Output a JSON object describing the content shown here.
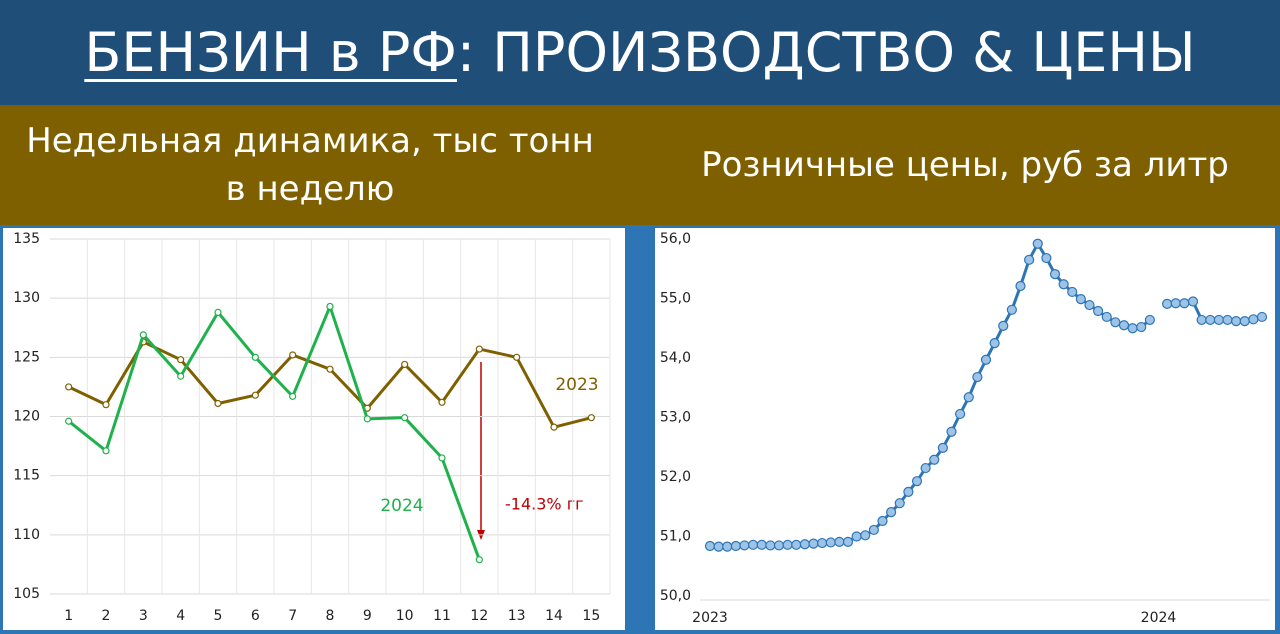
{
  "header": {
    "title_main": "БЕНЗИН в РФ",
    "title_rest": ": ПРОИЗВОДСТВО & ЦЕНЫ",
    "subtitle_left": "Недельная динамика, тыс тонн в неделю",
    "subtitle_right": "Розничные цены, руб за литр"
  },
  "chart_data": [
    {
      "type": "line",
      "categories": [
        "1",
        "2",
        "3",
        "4",
        "5",
        "6",
        "7",
        "8",
        "9",
        "10",
        "11",
        "12",
        "13",
        "14",
        "15"
      ],
      "series": [
        {
          "name": "2023",
          "color": "#7f6000",
          "values": [
            122.5,
            121.0,
            126.3,
            124.8,
            121.1,
            121.8,
            125.2,
            124.0,
            120.7,
            124.4,
            121.2,
            125.7,
            125.0,
            119.1,
            119.9
          ]
        },
        {
          "name": "2024",
          "color": "#1fb14c",
          "values": [
            119.6,
            117.1,
            126.9,
            123.4,
            128.8,
            125.0,
            121.7,
            129.3,
            119.8,
            119.9,
            116.5,
            107.9,
            null,
            null,
            null
          ]
        }
      ],
      "ylim": [
        105,
        135
      ],
      "yticks": [
        105,
        110,
        115,
        120,
        125,
        130,
        135
      ],
      "grid": true,
      "annotation": "-14.3% гг"
    },
    {
      "type": "line",
      "categories": [
        "2023",
        null,
        null,
        null,
        null,
        null,
        null,
        null,
        null,
        null,
        null,
        null,
        null,
        null,
        null,
        null,
        null,
        null,
        null,
        null,
        null,
        null,
        null,
        null,
        null,
        null,
        null,
        null,
        null,
        null,
        null,
        null,
        null,
        null,
        null,
        null,
        null,
        null,
        null,
        null,
        null,
        null,
        null,
        null,
        null,
        null,
        null,
        null,
        null,
        null,
        null,
        null,
        "2024",
        null,
        null,
        null,
        null,
        null,
        null,
        null,
        null,
        null,
        null,
        null,
        null
      ],
      "series": [
        {
          "color": "#2e75b6",
          "values": [
            50.84,
            50.83,
            50.83,
            50.84,
            50.85,
            50.86,
            50.86,
            50.85,
            50.85,
            50.86,
            50.86,
            50.87,
            50.88,
            50.89,
            50.9,
            50.91,
            50.91,
            51.0,
            51.02,
            51.11,
            51.26,
            51.41,
            51.56,
            51.75,
            51.93,
            52.15,
            52.29,
            52.49,
            52.76,
            53.06,
            53.34,
            53.68,
            53.97,
            54.25,
            54.54,
            54.81,
            55.21,
            55.65,
            55.92,
            55.68,
            55.41,
            55.24,
            55.11,
            54.99,
            54.89,
            54.79,
            54.69,
            54.6,
            54.55,
            54.5,
            54.52,
            54.64,
            null,
            54.91,
            54.92,
            54.92,
            54.95,
            54.64,
            54.64,
            54.64,
            54.64,
            54.62,
            54.62,
            54.65,
            54.69
          ]
        }
      ],
      "ylim": [
        50,
        56
      ],
      "yticks": [
        {
          "value": 50,
          "label": "50,0"
        },
        {
          "value": 51,
          "label": "51,0"
        },
        {
          "value": 52,
          "label": "52,0"
        },
        {
          "value": 53,
          "label": "53,0"
        },
        {
          "value": 54,
          "label": "54,0"
        },
        {
          "value": 55,
          "label": "55,0"
        },
        {
          "value": 56,
          "label": "56,0"
        }
      ],
      "grid": false
    }
  ]
}
